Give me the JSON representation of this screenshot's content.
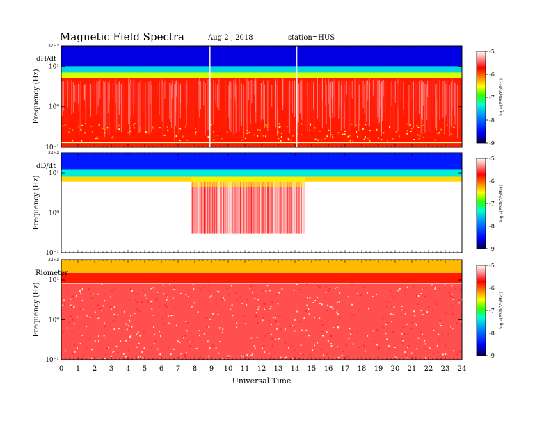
{
  "header": {
    "title": "Magnetic  Field  Spectra",
    "date": "Aug 2  , 2018",
    "station": "station=HUS"
  },
  "colorbar": {
    "label": "log₁₀(PSD(V²/Hz))",
    "ticks": [
      "-5",
      "-6",
      "-7",
      "-8",
      "-9"
    ],
    "colors": [
      "#000060",
      "#0000ff",
      "#00a0ff",
      "#00ffc0",
      "#40ff00",
      "#ffff00",
      "#ff8000",
      "#ff0000",
      "#ff8080",
      "#ffffff"
    ]
  },
  "xaxis": {
    "label": "Universal Time",
    "ticks": [
      "0",
      "1",
      "2",
      "3",
      "4",
      "5",
      "6",
      "7",
      "8",
      "9",
      "10",
      "11",
      "12",
      "13",
      "14",
      "15",
      "16",
      "17",
      "18",
      "19",
      "20",
      "21",
      "22",
      "23",
      "24"
    ]
  },
  "chart_data": [
    {
      "type": "heatmap",
      "panel_label": "dH/dt",
      "ylabel": "Frequency (Hz)",
      "top_label": "32Hz",
      "y_ticks": [
        "10¹",
        "10⁰",
        "10⁻¹"
      ],
      "xlim": [
        0,
        24
      ],
      "ylim_hz": [
        0.1,
        32
      ],
      "clim": [
        -9,
        -5
      ],
      "profile": [
        {
          "band_hz": [
            10,
            32
          ],
          "log_psd": -8.6
        },
        {
          "band_hz": [
            7,
            10
          ],
          "log_psd": -7.5
        },
        {
          "band_hz": [
            5,
            7
          ],
          "log_psd": -6.6
        },
        {
          "band_hz": [
            0.1,
            5
          ],
          "log_psd": -5.8
        }
      ],
      "features": [
        {
          "ut": 14.1,
          "description": "broadband spike"
        },
        {
          "ut": 8.9,
          "description": "broadband spike"
        }
      ]
    },
    {
      "type": "heatmap",
      "panel_label": "dD/dt",
      "ylabel": "Frequency (Hz)",
      "top_label": "32Hz",
      "y_ticks": [
        "10¹",
        "10⁰",
        "10⁻¹"
      ],
      "xlim": [
        0,
        24
      ],
      "ylim_hz": [
        0.1,
        32
      ],
      "clim": [
        -9,
        -5
      ],
      "profile": [
        {
          "band_hz": [
            12,
            32
          ],
          "log_psd": -8.4
        },
        {
          "band_hz": [
            8,
            12
          ],
          "log_psd": -7.4
        },
        {
          "band_hz": [
            6,
            8
          ],
          "log_psd": -6.4
        },
        {
          "band_hz": [
            0.1,
            6
          ],
          "log_psd": -4.6
        }
      ],
      "features": [
        {
          "ut_range": [
            7.8,
            14.6
          ],
          "band_hz": [
            0.3,
            6
          ],
          "log_psd": -5.9,
          "description": "enhanced activity"
        }
      ]
    },
    {
      "type": "heatmap",
      "panel_label": "Riometer",
      "ylabel": "Frequency (Hz)",
      "top_label": "32Hz",
      "y_ticks": [
        "10¹",
        "10⁰",
        "10⁻¹"
      ],
      "xlim": [
        0,
        24
      ],
      "ylim_hz": [
        0.1,
        32
      ],
      "clim": [
        -9,
        -5
      ],
      "profile": [
        {
          "band_hz": [
            15,
            32
          ],
          "log_psd": -6.3
        },
        {
          "band_hz": [
            8,
            15
          ],
          "log_psd": -5.8
        },
        {
          "band_hz": [
            0.1,
            8
          ],
          "log_psd": -5.5
        }
      ]
    }
  ]
}
